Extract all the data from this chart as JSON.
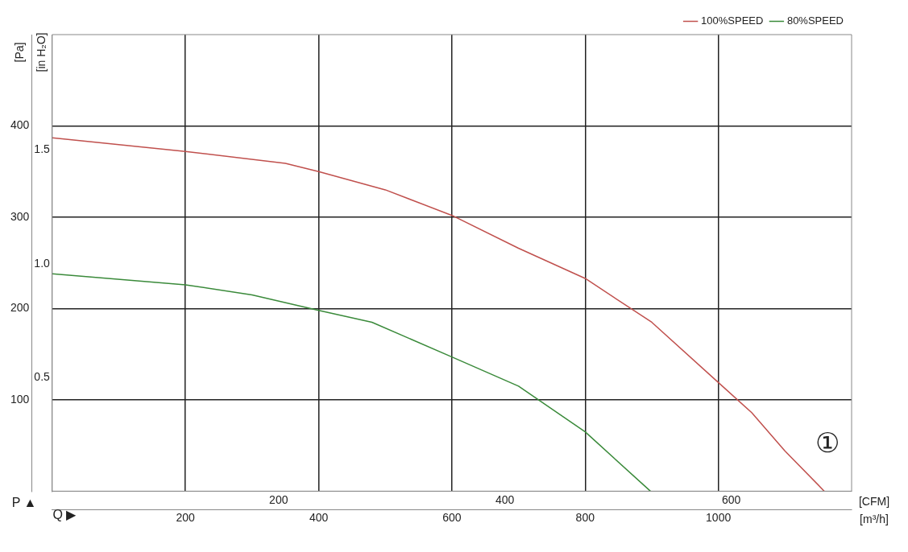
{
  "chart_data": {
    "type": "line",
    "xlabel": "[m³/h]",
    "ylabel": "[Pa]",
    "x2label": "[CFM]",
    "y2label": "[in H₂O]",
    "xlim": [
      0,
      1200
    ],
    "xticks": [
      200,
      400,
      600,
      800,
      1000
    ],
    "ylim": [
      0,
      500
    ],
    "yticks": [
      100,
      200,
      300,
      400
    ],
    "x2lim": [
      0,
      706.3
    ],
    "x2ticks": [
      200,
      400,
      600
    ],
    "y2lim": [
      0,
      2.007
    ],
    "y2ticks": [
      0.5,
      {
        "value": 1,
        "label": "1.0"
      },
      1.5
    ],
    "tick_labels": "xy",
    "grid": true,
    "legend": "top right",
    "marker": "none",
    "line_style": "solid",
    "annotations": [
      "P ▲",
      "Q ▶",
      "①"
    ],
    "series": [
      {
        "name": "100%SPEED",
        "color": "#c0504d",
        "x": [
          0,
          200,
          350,
          400,
          500,
          600,
          700,
          800,
          900,
          1000,
          1050,
          1100,
          1159
        ],
        "values": [
          387,
          372,
          359,
          350,
          330,
          302,
          266,
          233,
          185,
          119,
          86,
          44,
          0
        ]
      },
      {
        "name": "80%SPEED",
        "color": "#3a8a3a",
        "x": [
          0,
          200,
          300,
          400,
          480,
          600,
          700,
          800,
          898
        ],
        "values": [
          238,
          226,
          215,
          198,
          185,
          147,
          115,
          65,
          0
        ]
      }
    ]
  }
}
